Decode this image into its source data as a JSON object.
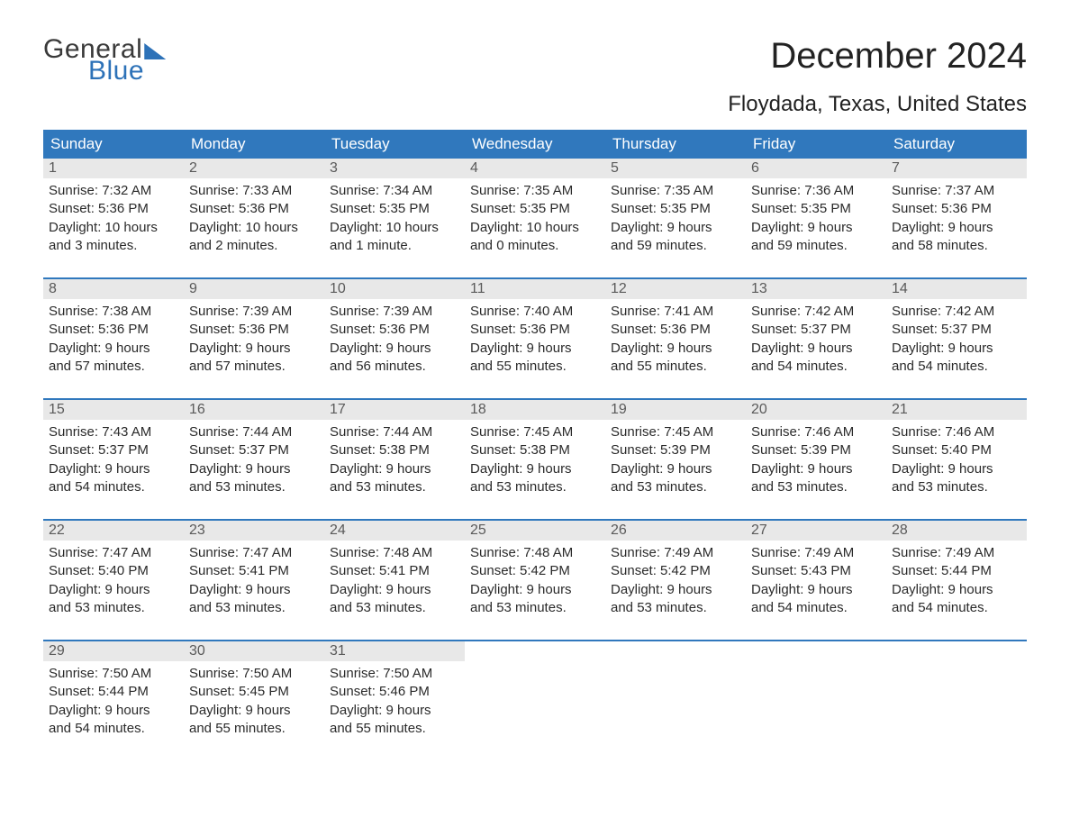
{
  "logo": {
    "word1": "General",
    "word2": "Blue"
  },
  "title": "December 2024",
  "location": "Floydada, Texas, United States",
  "colors": {
    "header_bg": "#3078bd",
    "header_text": "#ffffff",
    "daynum_bg": "#e8e8e8",
    "daynum_text": "#5a5a5a",
    "body_text": "#2a2a2a",
    "rule": "#3078bd",
    "page_bg": "#ffffff",
    "logo_gray": "#3a3a3a",
    "logo_blue": "#2d72b8"
  },
  "typography": {
    "title_fontsize": 40,
    "location_fontsize": 24,
    "header_fontsize": 17,
    "daynum_fontsize": 16,
    "body_fontsize": 15,
    "logo_fontsize": 30
  },
  "day_headers": [
    "Sunday",
    "Monday",
    "Tuesday",
    "Wednesday",
    "Thursday",
    "Friday",
    "Saturday"
  ],
  "weeks": [
    [
      {
        "n": "1",
        "sunrise": "Sunrise: 7:32 AM",
        "sunset": "Sunset: 5:36 PM",
        "d1": "Daylight: 10 hours",
        "d2": "and 3 minutes."
      },
      {
        "n": "2",
        "sunrise": "Sunrise: 7:33 AM",
        "sunset": "Sunset: 5:36 PM",
        "d1": "Daylight: 10 hours",
        "d2": "and 2 minutes."
      },
      {
        "n": "3",
        "sunrise": "Sunrise: 7:34 AM",
        "sunset": "Sunset: 5:35 PM",
        "d1": "Daylight: 10 hours",
        "d2": "and 1 minute."
      },
      {
        "n": "4",
        "sunrise": "Sunrise: 7:35 AM",
        "sunset": "Sunset: 5:35 PM",
        "d1": "Daylight: 10 hours",
        "d2": "and 0 minutes."
      },
      {
        "n": "5",
        "sunrise": "Sunrise: 7:35 AM",
        "sunset": "Sunset: 5:35 PM",
        "d1": "Daylight: 9 hours",
        "d2": "and 59 minutes."
      },
      {
        "n": "6",
        "sunrise": "Sunrise: 7:36 AM",
        "sunset": "Sunset: 5:35 PM",
        "d1": "Daylight: 9 hours",
        "d2": "and 59 minutes."
      },
      {
        "n": "7",
        "sunrise": "Sunrise: 7:37 AM",
        "sunset": "Sunset: 5:36 PM",
        "d1": "Daylight: 9 hours",
        "d2": "and 58 minutes."
      }
    ],
    [
      {
        "n": "8",
        "sunrise": "Sunrise: 7:38 AM",
        "sunset": "Sunset: 5:36 PM",
        "d1": "Daylight: 9 hours",
        "d2": "and 57 minutes."
      },
      {
        "n": "9",
        "sunrise": "Sunrise: 7:39 AM",
        "sunset": "Sunset: 5:36 PM",
        "d1": "Daylight: 9 hours",
        "d2": "and 57 minutes."
      },
      {
        "n": "10",
        "sunrise": "Sunrise: 7:39 AM",
        "sunset": "Sunset: 5:36 PM",
        "d1": "Daylight: 9 hours",
        "d2": "and 56 minutes."
      },
      {
        "n": "11",
        "sunrise": "Sunrise: 7:40 AM",
        "sunset": "Sunset: 5:36 PM",
        "d1": "Daylight: 9 hours",
        "d2": "and 55 minutes."
      },
      {
        "n": "12",
        "sunrise": "Sunrise: 7:41 AM",
        "sunset": "Sunset: 5:36 PM",
        "d1": "Daylight: 9 hours",
        "d2": "and 55 minutes."
      },
      {
        "n": "13",
        "sunrise": "Sunrise: 7:42 AM",
        "sunset": "Sunset: 5:37 PM",
        "d1": "Daylight: 9 hours",
        "d2": "and 54 minutes."
      },
      {
        "n": "14",
        "sunrise": "Sunrise: 7:42 AM",
        "sunset": "Sunset: 5:37 PM",
        "d1": "Daylight: 9 hours",
        "d2": "and 54 minutes."
      }
    ],
    [
      {
        "n": "15",
        "sunrise": "Sunrise: 7:43 AM",
        "sunset": "Sunset: 5:37 PM",
        "d1": "Daylight: 9 hours",
        "d2": "and 54 minutes."
      },
      {
        "n": "16",
        "sunrise": "Sunrise: 7:44 AM",
        "sunset": "Sunset: 5:37 PM",
        "d1": "Daylight: 9 hours",
        "d2": "and 53 minutes."
      },
      {
        "n": "17",
        "sunrise": "Sunrise: 7:44 AM",
        "sunset": "Sunset: 5:38 PM",
        "d1": "Daylight: 9 hours",
        "d2": "and 53 minutes."
      },
      {
        "n": "18",
        "sunrise": "Sunrise: 7:45 AM",
        "sunset": "Sunset: 5:38 PM",
        "d1": "Daylight: 9 hours",
        "d2": "and 53 minutes."
      },
      {
        "n": "19",
        "sunrise": "Sunrise: 7:45 AM",
        "sunset": "Sunset: 5:39 PM",
        "d1": "Daylight: 9 hours",
        "d2": "and 53 minutes."
      },
      {
        "n": "20",
        "sunrise": "Sunrise: 7:46 AM",
        "sunset": "Sunset: 5:39 PM",
        "d1": "Daylight: 9 hours",
        "d2": "and 53 minutes."
      },
      {
        "n": "21",
        "sunrise": "Sunrise: 7:46 AM",
        "sunset": "Sunset: 5:40 PM",
        "d1": "Daylight: 9 hours",
        "d2": "and 53 minutes."
      }
    ],
    [
      {
        "n": "22",
        "sunrise": "Sunrise: 7:47 AM",
        "sunset": "Sunset: 5:40 PM",
        "d1": "Daylight: 9 hours",
        "d2": "and 53 minutes."
      },
      {
        "n": "23",
        "sunrise": "Sunrise: 7:47 AM",
        "sunset": "Sunset: 5:41 PM",
        "d1": "Daylight: 9 hours",
        "d2": "and 53 minutes."
      },
      {
        "n": "24",
        "sunrise": "Sunrise: 7:48 AM",
        "sunset": "Sunset: 5:41 PM",
        "d1": "Daylight: 9 hours",
        "d2": "and 53 minutes."
      },
      {
        "n": "25",
        "sunrise": "Sunrise: 7:48 AM",
        "sunset": "Sunset: 5:42 PM",
        "d1": "Daylight: 9 hours",
        "d2": "and 53 minutes."
      },
      {
        "n": "26",
        "sunrise": "Sunrise: 7:49 AM",
        "sunset": "Sunset: 5:42 PM",
        "d1": "Daylight: 9 hours",
        "d2": "and 53 minutes."
      },
      {
        "n": "27",
        "sunrise": "Sunrise: 7:49 AM",
        "sunset": "Sunset: 5:43 PM",
        "d1": "Daylight: 9 hours",
        "d2": "and 54 minutes."
      },
      {
        "n": "28",
        "sunrise": "Sunrise: 7:49 AM",
        "sunset": "Sunset: 5:44 PM",
        "d1": "Daylight: 9 hours",
        "d2": "and 54 minutes."
      }
    ],
    [
      {
        "n": "29",
        "sunrise": "Sunrise: 7:50 AM",
        "sunset": "Sunset: 5:44 PM",
        "d1": "Daylight: 9 hours",
        "d2": "and 54 minutes."
      },
      {
        "n": "30",
        "sunrise": "Sunrise: 7:50 AM",
        "sunset": "Sunset: 5:45 PM",
        "d1": "Daylight: 9 hours",
        "d2": "and 55 minutes."
      },
      {
        "n": "31",
        "sunrise": "Sunrise: 7:50 AM",
        "sunset": "Sunset: 5:46 PM",
        "d1": "Daylight: 9 hours",
        "d2": "and 55 minutes."
      },
      null,
      null,
      null,
      null
    ]
  ]
}
